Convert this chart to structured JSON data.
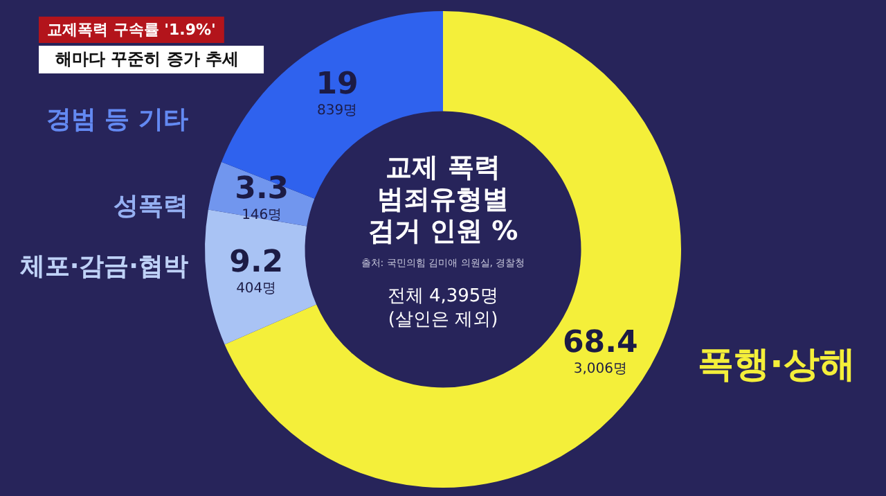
{
  "chart_data": {
    "type": "donut",
    "title": "교제폭력 구속률 '1.9%'",
    "subtitle": "해마다 꾸준히 증가 추세",
    "categories": [
      "폭행·상해",
      "체포·감금·협박",
      "성폭력",
      "경범 등 기타"
    ],
    "values": [
      68.4,
      9.2,
      3.3,
      19
    ],
    "colors": [
      "#f4ef3a",
      "#a9c3f4",
      "#7196ee",
      "#2f62ee"
    ],
    "data_labels": true,
    "legend": false,
    "annotations": [
      "교제 폭력\n범죄유형별\n검거 인원 %",
      "출처: 국민의힘 김미애 의원실, 경찰청",
      "전체 4,395명\n(살인은 제외)",
      {
        "text": "3,006명",
        "x": "폭행·상해"
      },
      {
        "text": "404명",
        "x": "체포·감금·협박"
      },
      {
        "text": "146명",
        "x": "성폭력"
      },
      {
        "text": "839명",
        "x": "경범 등 기타"
      }
    ]
  }
}
